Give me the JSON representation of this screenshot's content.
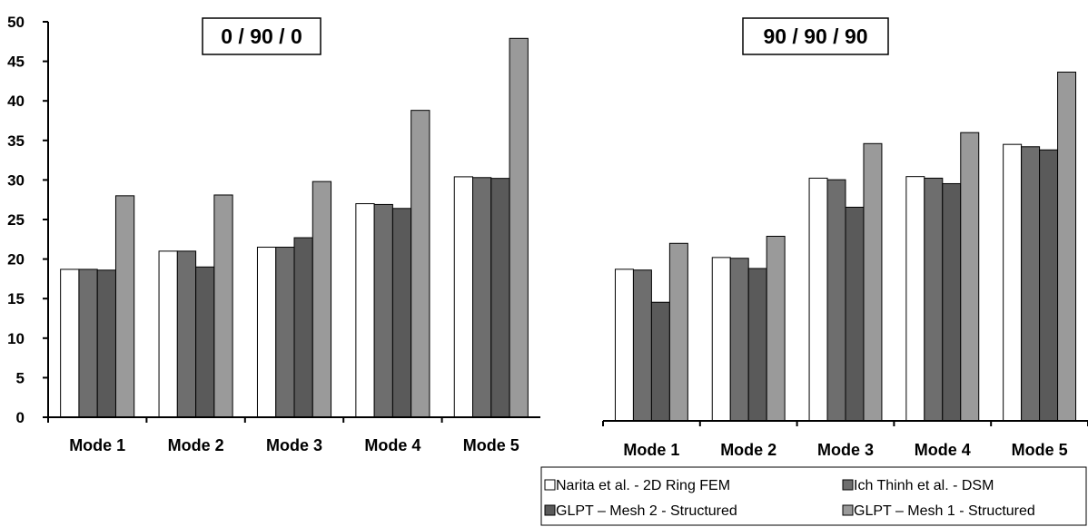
{
  "chart_data": [
    {
      "type": "bar",
      "title": "0 / 90 / 0",
      "categories": [
        "Mode 1",
        "Mode 2",
        "Mode 3",
        "Mode 4",
        "Mode 5"
      ],
      "ylim": [
        0,
        50
      ],
      "yticks": [
        0,
        5,
        10,
        15,
        20,
        25,
        30,
        35,
        40,
        45,
        50
      ],
      "grid": false,
      "series": [
        {
          "name": "Narita et al. - 2D Ring FEM",
          "values": [
            18.7,
            21.0,
            21.5,
            27.0,
            30.4
          ]
        },
        {
          "name": "Ich Thinh et al. - DSM",
          "values": [
            18.7,
            21.0,
            21.5,
            26.9,
            30.3
          ]
        },
        {
          "name": "GLPT – Mesh 2 - Structured",
          "values": [
            18.6,
            19.0,
            22.7,
            26.4,
            30.2
          ]
        },
        {
          "name": "GLPT – Mesh 1 - Structured",
          "values": [
            28.0,
            28.1,
            29.8,
            38.8,
            47.9
          ]
        }
      ]
    },
    {
      "type": "bar",
      "title": "90 / 90 / 90",
      "categories": [
        "Mode 1",
        "Mode 2",
        "Mode 3",
        "Mode 4",
        "Mode 5"
      ],
      "ylim": [
        0,
        50
      ],
      "grid": false,
      "series": [
        {
          "name": "Narita et al. - 2D Ring FEM",
          "values": [
            19.3,
            20.8,
            30.9,
            31.1,
            35.2
          ]
        },
        {
          "name": "Ich Thinh et al. - DSM",
          "values": [
            19.2,
            20.7,
            30.7,
            30.9,
            34.9
          ]
        },
        {
          "name": "GLPT – Mesh 2 - Structured",
          "values": [
            15.1,
            19.4,
            27.2,
            30.2,
            34.5
          ]
        },
        {
          "name": "GLPT – Mesh 1 - Structured",
          "values": [
            22.6,
            23.5,
            35.3,
            36.7,
            44.4
          ]
        }
      ]
    }
  ],
  "legend": {
    "placement": "bottom-right",
    "entries": [
      {
        "label": "Narita et al. - 2D Ring FEM",
        "color": "#ffffff"
      },
      {
        "label": "Ich Thinh et al. - DSM",
        "color": "#6e6e6e"
      },
      {
        "label": "GLPT – Mesh 2 - Structured",
        "color": "#5a5a5a"
      },
      {
        "label": "GLPT – Mesh 1 - Structured",
        "color": "#9a9a9a"
      }
    ]
  },
  "colors": [
    "#ffffff",
    "#6e6e6e",
    "#5a5a5a",
    "#9a9a9a"
  ]
}
